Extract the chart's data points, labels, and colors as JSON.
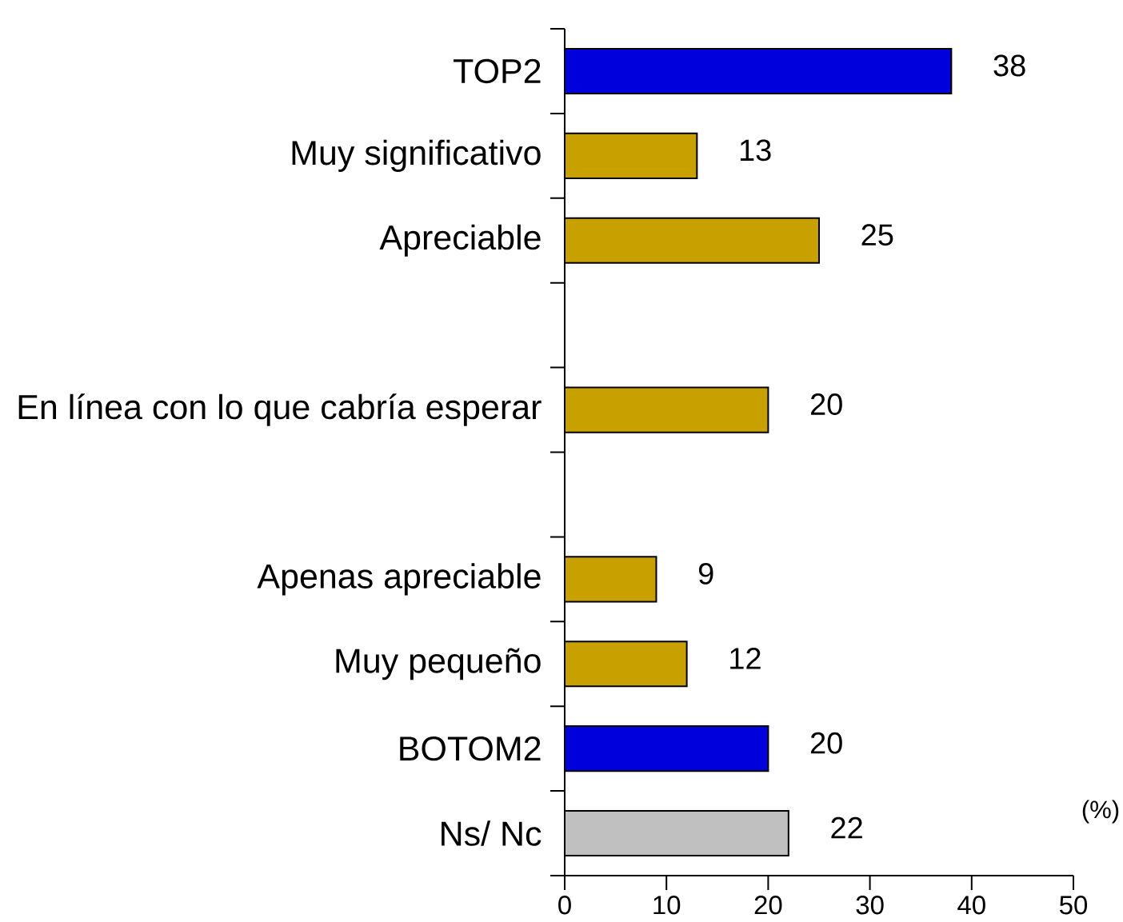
{
  "chart_data": {
    "type": "bar",
    "orientation": "horizontal",
    "categories": [
      "TOP2",
      "Muy significativo",
      "Apreciable",
      null,
      "En línea con lo que cabría esperar",
      null,
      "Apenas apreciable",
      "Muy pequeño",
      "BOTOM2",
      "Ns/ Nc"
    ],
    "values": [
      38,
      13,
      25,
      null,
      20,
      null,
      9,
      12,
      20,
      22
    ],
    "colors": [
      "#0000dd",
      "#c8a000",
      "#c8a000",
      null,
      "#c8a000",
      null,
      "#c8a000",
      "#c8a000",
      "#0000dd",
      "#c0c0c0"
    ],
    "xlim": [
      0,
      50
    ],
    "xticks": [
      0,
      10,
      20,
      30,
      40,
      50
    ],
    "xlabel": "(%)",
    "data_labels": true
  }
}
